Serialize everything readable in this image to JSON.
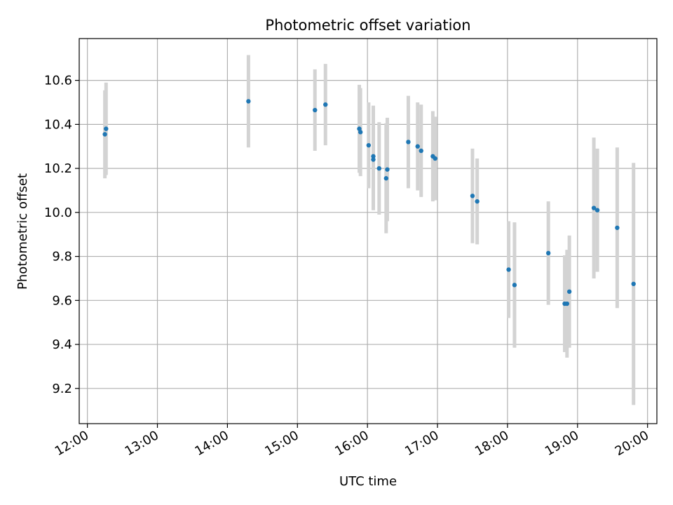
{
  "chart_data": {
    "type": "scatter",
    "title": "Photometric offset variation",
    "xlabel": "UTC time",
    "ylabel": "Photometric offset",
    "x_ticks": [
      "12:00",
      "13:00",
      "14:00",
      "15:00",
      "16:00",
      "17:00",
      "18:00",
      "19:00",
      "20:00"
    ],
    "y_ticks": [
      "9.2",
      "9.4",
      "9.6",
      "9.8",
      "10.0",
      "10.2",
      "10.4",
      "10.6"
    ],
    "xlim": [
      "11:53",
      "20:08"
    ],
    "ylim": [
      9.04,
      10.79
    ],
    "grid": true,
    "points": [
      {
        "x": "12:15",
        "y": 10.355,
        "err": 0.2
      },
      {
        "x": "12:16",
        "y": 10.38,
        "err": 0.21
      },
      {
        "x": "14:18",
        "y": 10.505,
        "err": 0.21
      },
      {
        "x": "15:15",
        "y": 10.465,
        "err": 0.185
      },
      {
        "x": "15:24",
        "y": 10.49,
        "err": 0.185
      },
      {
        "x": "15:53",
        "y": 10.38,
        "err": 0.2
      },
      {
        "x": "15:54",
        "y": 10.365,
        "err": 0.2
      },
      {
        "x": "16:01",
        "y": 10.305,
        "err": 0.195
      },
      {
        "x": "16:05",
        "y": 10.255,
        "err": 0.23
      },
      {
        "x": "16:05",
        "y": 10.24,
        "err": 0.23
      },
      {
        "x": "16:10",
        "y": 10.2,
        "err": 0.21
      },
      {
        "x": "16:16",
        "y": 10.155,
        "err": 0.25
      },
      {
        "x": "16:17",
        "y": 10.195,
        "err": 0.235
      },
      {
        "x": "16:35",
        "y": 10.32,
        "err": 0.21
      },
      {
        "x": "16:43",
        "y": 10.3,
        "err": 0.2
      },
      {
        "x": "16:46",
        "y": 10.28,
        "err": 0.21
      },
      {
        "x": "16:56",
        "y": 10.255,
        "err": 0.205
      },
      {
        "x": "16:58",
        "y": 10.245,
        "err": 0.19
      },
      {
        "x": "17:30",
        "y": 10.075,
        "err": 0.215
      },
      {
        "x": "17:34",
        "y": 10.05,
        "err": 0.195
      },
      {
        "x": "18:01",
        "y": 9.74,
        "err": 0.22
      },
      {
        "x": "18:06",
        "y": 9.67,
        "err": 0.285
      },
      {
        "x": "18:35",
        "y": 9.815,
        "err": 0.235
      },
      {
        "x": "18:49",
        "y": 9.585,
        "err": 0.22
      },
      {
        "x": "18:51",
        "y": 9.585,
        "err": 0.245
      },
      {
        "x": "18:53",
        "y": 9.64,
        "err": 0.255
      },
      {
        "x": "19:14",
        "y": 10.02,
        "err": 0.32
      },
      {
        "x": "19:17",
        "y": 10.01,
        "err": 0.28
      },
      {
        "x": "19:34",
        "y": 9.93,
        "err": 0.365
      },
      {
        "x": "19:48",
        "y": 9.675,
        "err": 0.55
      }
    ],
    "colors": {
      "point": "#1f77b4",
      "errorbar": "#d3d3d3",
      "grid": "#b0b0b0"
    }
  }
}
